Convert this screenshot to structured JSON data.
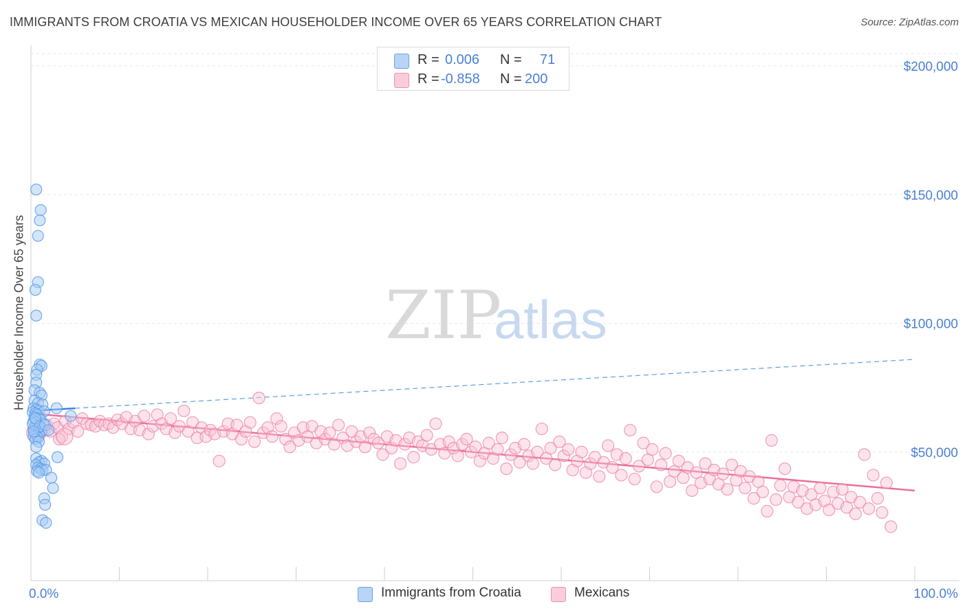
{
  "title": "IMMIGRANTS FROM CROATIA VS MEXICAN HOUSEHOLDER INCOME OVER 65 YEARS CORRELATION CHART",
  "source": "Source: ZipAtlas.com",
  "watermark": {
    "zip": "ZIP",
    "atlas": "atlas"
  },
  "legend": {
    "rows": [
      {
        "r_label": "R = ",
        "r_value": "0.006",
        "n_label": "N = ",
        "n_value": "71",
        "color": "#9cc3f0"
      },
      {
        "r_label": "R = ",
        "r_value": "-0.858",
        "n_label": "N = ",
        "n_value": "200",
        "color": "#f7b6cb"
      }
    ]
  },
  "bottom_legend": [
    {
      "label": "Immigrants from Croatia",
      "color": "#9cc3f0"
    },
    {
      "label": "Mexicans",
      "color": "#f7b6cb"
    }
  ],
  "chart_data": {
    "type": "scatter",
    "title": "IMMIGRANTS FROM CROATIA VS MEXICAN HOUSEHOLDER INCOME OVER 65 YEARS CORRELATION CHART",
    "xlabel": "",
    "ylabel": "Householder Income Over 65 years",
    "xlim": [
      0,
      100
    ],
    "ylim": [
      0,
      210000
    ],
    "x_tick_labels": [
      "0.0%",
      "100.0%"
    ],
    "y_ticks": [
      50000,
      100000,
      150000,
      200000
    ],
    "y_tick_labels": [
      "$50,000",
      "$100,000",
      "$150,000",
      "$200,000"
    ],
    "grid": true,
    "legend_position": "top-center",
    "colors": {
      "croatia": "#5b9bea",
      "croatia_fill": "#a8ccf4",
      "mexicans": "#ee7fa3",
      "mexicans_fill": "#f9c3d4",
      "axis_text": "#4a7fd4"
    },
    "series": [
      {
        "name": "Immigrants from Croatia",
        "points": [
          [
            0.6,
            152000
          ],
          [
            1.1,
            144000
          ],
          [
            1.0,
            140000
          ],
          [
            0.8,
            134000
          ],
          [
            0.8,
            116000
          ],
          [
            0.5,
            113000
          ],
          [
            0.6,
            103000
          ],
          [
            1.0,
            84000
          ],
          [
            1.2,
            83500
          ],
          [
            0.7,
            82000
          ],
          [
            0.6,
            80000
          ],
          [
            0.6,
            77000
          ],
          [
            0.4,
            74000
          ],
          [
            1.0,
            73000
          ],
          [
            1.2,
            72000
          ],
          [
            0.4,
            70000
          ],
          [
            0.8,
            69000
          ],
          [
            1.3,
            68500
          ],
          [
            2.9,
            67000
          ],
          [
            0.3,
            67000
          ],
          [
            0.6,
            66500
          ],
          [
            0.9,
            66000
          ],
          [
            1.5,
            65800
          ],
          [
            0.2,
            65500
          ],
          [
            0.5,
            65000
          ],
          [
            0.7,
            64500
          ],
          [
            4.5,
            64000
          ],
          [
            0.4,
            63500
          ],
          [
            0.9,
            63000
          ],
          [
            1.1,
            62500
          ],
          [
            0.3,
            62000
          ],
          [
            0.6,
            61500
          ],
          [
            1.4,
            61000
          ],
          [
            0.8,
            60500
          ],
          [
            0.5,
            60000
          ],
          [
            1.0,
            59500
          ],
          [
            0.3,
            59000
          ],
          [
            0.7,
            58500
          ],
          [
            1.2,
            58000
          ],
          [
            0.4,
            57500
          ],
          [
            0.9,
            57000
          ],
          [
            0.6,
            56500
          ],
          [
            0.3,
            56000
          ],
          [
            0.8,
            55500
          ],
          [
            0.5,
            55000
          ],
          [
            0.9,
            54000
          ],
          [
            0.6,
            52000
          ],
          [
            3.0,
            48000
          ],
          [
            0.6,
            47500
          ],
          [
            1.2,
            46500
          ],
          [
            0.9,
            46000
          ],
          [
            1.5,
            45500
          ],
          [
            0.6,
            45000
          ],
          [
            0.8,
            44000
          ],
          [
            1.1,
            43500
          ],
          [
            1.3,
            43000
          ],
          [
            0.7,
            42500
          ],
          [
            1.7,
            43000
          ],
          [
            0.9,
            42000
          ],
          [
            2.3,
            40000
          ],
          [
            2.5,
            36000
          ],
          [
            1.5,
            32000
          ],
          [
            1.6,
            29500
          ],
          [
            1.3,
            23500
          ],
          [
            1.7,
            22500
          ],
          [
            0.2,
            61000
          ],
          [
            0.5,
            63000
          ],
          [
            1.0,
            60000
          ],
          [
            0.3,
            58000
          ],
          [
            1.6,
            60500
          ],
          [
            2.0,
            58500
          ]
        ],
        "trend": {
          "x": [
            0,
            5
          ],
          "y": [
            66000,
            67000
          ]
        },
        "trend_extended": {
          "x": [
            5,
            100
          ],
          "y": [
            67000,
            86000
          ]
        }
      },
      {
        "name": "Mexicans",
        "points": [
          [
            0.8,
            60000
          ],
          [
            1.2,
            59000
          ],
          [
            1.5,
            58500
          ],
          [
            1.8,
            60500
          ],
          [
            2.2,
            58000
          ],
          [
            2.6,
            61000
          ],
          [
            3.0,
            59500
          ],
          [
            3.5,
            56000
          ],
          [
            3.9,
            62000
          ],
          [
            4.3,
            59000
          ],
          [
            4.8,
            61500
          ],
          [
            5.3,
            58000
          ],
          [
            5.8,
            63000
          ],
          [
            6.3,
            61000
          ],
          [
            6.8,
            60500
          ],
          [
            7.3,
            60000
          ],
          [
            7.8,
            62000
          ],
          [
            8.3,
            60500
          ],
          [
            8.8,
            61000
          ],
          [
            9.3,
            59500
          ],
          [
            9.8,
            62500
          ],
          [
            10.3,
            61000
          ],
          [
            10.8,
            63500
          ],
          [
            11.3,
            59000
          ],
          [
            11.8,
            62000
          ],
          [
            12.3,
            58500
          ],
          [
            12.8,
            64000
          ],
          [
            13.3,
            57000
          ],
          [
            13.8,
            60000
          ],
          [
            14.3,
            64500
          ],
          [
            14.8,
            61000
          ],
          [
            15.3,
            59000
          ],
          [
            15.8,
            63000
          ],
          [
            16.3,
            57500
          ],
          [
            16.8,
            60000
          ],
          [
            17.3,
            66000
          ],
          [
            17.8,
            58000
          ],
          [
            18.3,
            61500
          ],
          [
            18.8,
            55500
          ],
          [
            19.3,
            59500
          ],
          [
            19.8,
            56000
          ],
          [
            20.3,
            58500
          ],
          [
            20.8,
            57000
          ],
          [
            21.3,
            46500
          ],
          [
            21.8,
            58000
          ],
          [
            22.3,
            61000
          ],
          [
            22.8,
            57000
          ],
          [
            23.3,
            60500
          ],
          [
            23.8,
            55000
          ],
          [
            24.3,
            58000
          ],
          [
            24.8,
            61500
          ],
          [
            25.3,
            54000
          ],
          [
            25.8,
            71000
          ],
          [
            26.3,
            57500
          ],
          [
            26.8,
            59500
          ],
          [
            27.3,
            56000
          ],
          [
            27.8,
            63000
          ],
          [
            28.3,
            60000
          ],
          [
            28.8,
            55000
          ],
          [
            29.3,
            52000
          ],
          [
            29.8,
            57500
          ],
          [
            30.3,
            54500
          ],
          [
            30.8,
            59500
          ],
          [
            31.3,
            56000
          ],
          [
            31.8,
            60000
          ],
          [
            32.3,
            53500
          ],
          [
            32.8,
            58000
          ],
          [
            33.3,
            55000
          ],
          [
            33.8,
            57500
          ],
          [
            34.3,
            53000
          ],
          [
            34.8,
            60500
          ],
          [
            35.3,
            55500
          ],
          [
            35.8,
            52500
          ],
          [
            36.3,
            58000
          ],
          [
            36.8,
            54000
          ],
          [
            37.3,
            56000
          ],
          [
            37.8,
            52000
          ],
          [
            38.3,
            57500
          ],
          [
            38.8,
            55000
          ],
          [
            39.3,
            53500
          ],
          [
            39.8,
            49000
          ],
          [
            40.3,
            56000
          ],
          [
            40.8,
            51500
          ],
          [
            41.3,
            54500
          ],
          [
            41.8,
            45500
          ],
          [
            42.3,
            53000
          ],
          [
            42.8,
            55500
          ],
          [
            43.3,
            48000
          ],
          [
            43.8,
            54000
          ],
          [
            44.3,
            52500
          ],
          [
            44.8,
            56500
          ],
          [
            45.3,
            51000
          ],
          [
            45.8,
            61000
          ],
          [
            46.3,
            53000
          ],
          [
            46.8,
            49500
          ],
          [
            47.3,
            54000
          ],
          [
            47.8,
            51500
          ],
          [
            48.3,
            48500
          ],
          [
            48.8,
            53000
          ],
          [
            49.3,
            55000
          ],
          [
            49.8,
            50000
          ],
          [
            50.3,
            52000
          ],
          [
            50.8,
            46500
          ],
          [
            51.3,
            49500
          ],
          [
            51.8,
            53500
          ],
          [
            52.3,
            47500
          ],
          [
            52.8,
            51000
          ],
          [
            53.3,
            55500
          ],
          [
            53.8,
            43500
          ],
          [
            54.3,
            49000
          ],
          [
            54.8,
            51500
          ],
          [
            55.3,
            46000
          ],
          [
            55.8,
            53000
          ],
          [
            56.3,
            48500
          ],
          [
            56.8,
            45500
          ],
          [
            57.3,
            50000
          ],
          [
            57.8,
            59000
          ],
          [
            58.3,
            47500
          ],
          [
            58.8,
            51500
          ],
          [
            59.3,
            45000
          ],
          [
            59.8,
            54000
          ],
          [
            60.3,
            48500
          ],
          [
            60.8,
            51000
          ],
          [
            61.3,
            43000
          ],
          [
            61.8,
            46500
          ],
          [
            62.3,
            50000
          ],
          [
            62.8,
            42000
          ],
          [
            63.3,
            45500
          ],
          [
            63.8,
            48000
          ],
          [
            64.3,
            40500
          ],
          [
            64.8,
            46000
          ],
          [
            65.3,
            52500
          ],
          [
            65.8,
            44000
          ],
          [
            66.3,
            49000
          ],
          [
            66.8,
            41000
          ],
          [
            67.3,
            47500
          ],
          [
            67.8,
            58500
          ],
          [
            68.3,
            39500
          ],
          [
            68.8,
            44500
          ],
          [
            69.3,
            53500
          ],
          [
            69.8,
            47000
          ],
          [
            70.3,
            51000
          ],
          [
            70.8,
            36500
          ],
          [
            71.3,
            45000
          ],
          [
            71.8,
            49500
          ],
          [
            72.3,
            38500
          ],
          [
            72.8,
            42500
          ],
          [
            73.3,
            46500
          ],
          [
            73.8,
            40000
          ],
          [
            74.3,
            44000
          ],
          [
            74.8,
            35000
          ],
          [
            75.3,
            42000
          ],
          [
            75.8,
            38000
          ],
          [
            76.3,
            45500
          ],
          [
            76.8,
            39500
          ],
          [
            77.3,
            43000
          ],
          [
            77.8,
            37500
          ],
          [
            78.3,
            41500
          ],
          [
            78.8,
            35500
          ],
          [
            79.3,
            45000
          ],
          [
            79.8,
            39000
          ],
          [
            80.3,
            42500
          ],
          [
            80.8,
            36000
          ],
          [
            81.3,
            40500
          ],
          [
            81.8,
            32000
          ],
          [
            82.3,
            38500
          ],
          [
            82.8,
            34500
          ],
          [
            83.3,
            27000
          ],
          [
            83.8,
            54500
          ],
          [
            84.3,
            31500
          ],
          [
            84.8,
            37000
          ],
          [
            85.3,
            43500
          ],
          [
            85.8,
            32500
          ],
          [
            86.3,
            36500
          ],
          [
            86.8,
            30500
          ],
          [
            87.3,
            35000
          ],
          [
            87.8,
            28000
          ],
          [
            88.3,
            33500
          ],
          [
            88.8,
            29500
          ],
          [
            89.3,
            36000
          ],
          [
            89.8,
            31000
          ],
          [
            90.3,
            27500
          ],
          [
            90.8,
            34500
          ],
          [
            91.3,
            30000
          ],
          [
            91.8,
            35500
          ],
          [
            92.3,
            28500
          ],
          [
            92.8,
            32500
          ],
          [
            93.3,
            26000
          ],
          [
            93.8,
            30500
          ],
          [
            94.3,
            49000
          ],
          [
            94.8,
            28000
          ],
          [
            95.3,
            41000
          ],
          [
            95.8,
            32000
          ],
          [
            96.3,
            26500
          ],
          [
            96.8,
            38000
          ],
          [
            97.3,
            21000
          ],
          [
            3.2,
            55000
          ]
        ],
        "trend": {
          "x": [
            0,
            100
          ],
          "y": [
            65000,
            35000
          ]
        }
      }
    ]
  }
}
